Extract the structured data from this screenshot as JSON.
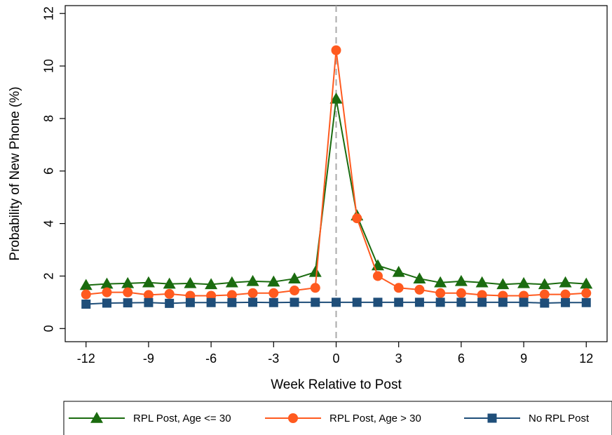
{
  "chart_data": {
    "type": "line",
    "title": "",
    "xlabel": "Week Relative to Post",
    "ylabel": "Probability of New Phone (%)",
    "xlim": [
      -13,
      13
    ],
    "ylim": [
      -0.5,
      12.3
    ],
    "x_ticks": [
      -12,
      -9,
      -6,
      -3,
      0,
      3,
      6,
      9,
      12
    ],
    "y_ticks": [
      0,
      2,
      4,
      6,
      8,
      10,
      12
    ],
    "x": [
      -12,
      -11,
      -10,
      -9,
      -8,
      -7,
      -6,
      -5,
      -4,
      -3,
      -2,
      -1,
      0,
      1,
      2,
      3,
      4,
      5,
      6,
      7,
      8,
      9,
      10,
      11,
      12
    ],
    "reference_line": {
      "x": 0,
      "style": "dashed",
      "color": "#aaaaaa"
    },
    "legend_position": "bottom",
    "series": [
      {
        "name": "RPL Post, Age <= 30",
        "color": "#1a6b0f",
        "marker": "triangle",
        "values": [
          1.65,
          1.7,
          1.72,
          1.75,
          1.7,
          1.72,
          1.68,
          1.75,
          1.8,
          1.78,
          1.9,
          2.15,
          8.75,
          4.3,
          2.4,
          2.15,
          1.9,
          1.75,
          1.8,
          1.75,
          1.68,
          1.72,
          1.68,
          1.75,
          1.7
        ]
      },
      {
        "name": "RPL Post, Age > 30",
        "color": "#ff5a1f",
        "marker": "circle",
        "values": [
          1.3,
          1.38,
          1.38,
          1.28,
          1.32,
          1.25,
          1.25,
          1.28,
          1.35,
          1.35,
          1.45,
          1.55,
          10.6,
          4.2,
          2.0,
          1.55,
          1.48,
          1.35,
          1.35,
          1.28,
          1.25,
          1.25,
          1.3,
          1.3,
          1.35
        ]
      },
      {
        "name": "No RPL Post",
        "color": "#1f4e79",
        "marker": "square",
        "values": [
          0.93,
          0.97,
          0.98,
          0.99,
          0.96,
          0.99,
          0.99,
          0.99,
          1.0,
          0.99,
          1.0,
          1.0,
          1.0,
          1.0,
          1.0,
          1.0,
          1.0,
          1.0,
          1.0,
          1.0,
          1.0,
          1.0,
          0.97,
          0.99,
          0.99
        ]
      }
    ]
  }
}
